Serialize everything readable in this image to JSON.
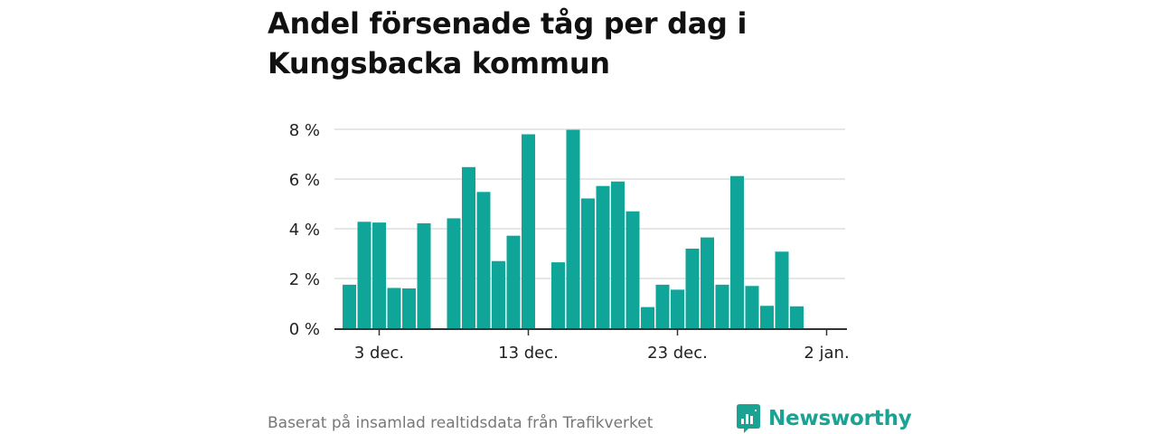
{
  "title": "Andel försenade tåg per dag i Kungsbacka kommun",
  "footer": {
    "source": "Baserat på insamlad realtidsdata från Trafikverket"
  },
  "brand": {
    "name": "Newsworthy",
    "icon": "newsworthy-logo-icon"
  },
  "colors": {
    "bar": "#0fa598",
    "grid": "#dddddd",
    "axis": "#333333",
    "text": "#222222",
    "brand": "#1aa292"
  },
  "chart_data": {
    "type": "bar",
    "x_axis": {
      "start": "2023-11-30",
      "end": "2024-01-02",
      "ticks": [
        "3 dec.",
        "13 dec.",
        "23 dec.",
        "2 jan."
      ]
    },
    "y_axis": {
      "min": 0,
      "max": 8,
      "ticks": [
        0,
        2,
        4,
        6,
        8
      ],
      "unit": "%",
      "tick_labels": [
        "0 %",
        "2 %",
        "4 %",
        "6 %",
        "8 %"
      ]
    },
    "grid": true,
    "points": [
      {
        "date": "2023-12-01",
        "value": 1.75
      },
      {
        "date": "2023-12-02",
        "value": 4.28
      },
      {
        "date": "2023-12-03",
        "value": 4.25
      },
      {
        "date": "2023-12-04",
        "value": 1.62
      },
      {
        "date": "2023-12-05",
        "value": 1.6
      },
      {
        "date": "2023-12-06",
        "value": 4.22
      },
      {
        "date": "2023-12-08",
        "value": 4.42
      },
      {
        "date": "2023-12-09",
        "value": 6.48
      },
      {
        "date": "2023-12-10",
        "value": 5.48
      },
      {
        "date": "2023-12-11",
        "value": 2.7
      },
      {
        "date": "2023-12-12",
        "value": 3.72
      },
      {
        "date": "2023-12-13",
        "value": 7.8
      },
      {
        "date": "2023-12-15",
        "value": 2.65
      },
      {
        "date": "2023-12-16",
        "value": 7.98
      },
      {
        "date": "2023-12-17",
        "value": 5.22
      },
      {
        "date": "2023-12-18",
        "value": 5.72
      },
      {
        "date": "2023-12-19",
        "value": 5.9
      },
      {
        "date": "2023-12-20",
        "value": 4.7
      },
      {
        "date": "2023-12-21",
        "value": 0.85
      },
      {
        "date": "2023-12-22",
        "value": 1.75
      },
      {
        "date": "2023-12-23",
        "value": 1.55
      },
      {
        "date": "2023-12-24",
        "value": 3.2
      },
      {
        "date": "2023-12-25",
        "value": 3.65
      },
      {
        "date": "2023-12-26",
        "value": 1.75
      },
      {
        "date": "2023-12-27",
        "value": 6.12
      },
      {
        "date": "2023-12-28",
        "value": 1.7
      },
      {
        "date": "2023-12-29",
        "value": 0.9
      },
      {
        "date": "2023-12-30",
        "value": 3.08
      },
      {
        "date": "2023-12-31",
        "value": 0.88
      }
    ]
  }
}
